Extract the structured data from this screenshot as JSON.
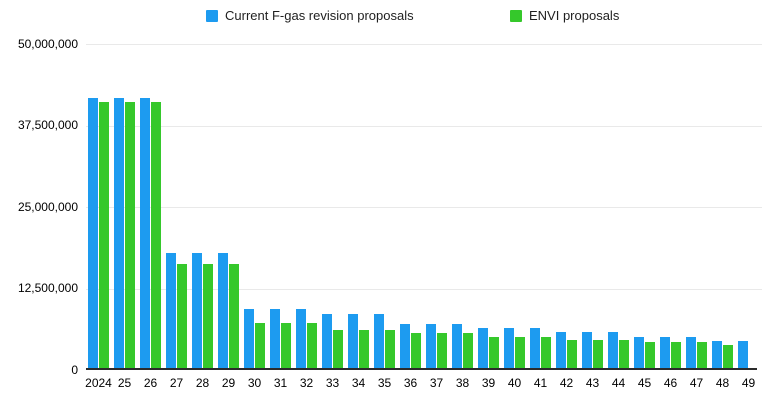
{
  "legend": {
    "items": [
      {
        "label": "Current F-gas revision proposals",
        "color": "#1d9bf0"
      },
      {
        "label": "ENVI proposals",
        "color": "#35c82b"
      }
    ]
  },
  "y_axis": {
    "tick_labels": [
      "50,000,000",
      "37,500,000",
      "25,000,000",
      "12,500,000",
      "0"
    ]
  },
  "chart_data": {
    "type": "bar",
    "title": "",
    "xlabel": "",
    "ylabel": "",
    "ylim": [
      0,
      50000000
    ],
    "grid": true,
    "legend_position": "top",
    "categories": [
      "2024",
      "25",
      "26",
      "27",
      "28",
      "29",
      "30",
      "31",
      "32",
      "33",
      "34",
      "35",
      "36",
      "37",
      "38",
      "39",
      "40",
      "41",
      "42",
      "43",
      "44",
      "45",
      "46",
      "47",
      "48",
      "49"
    ],
    "series": [
      {
        "name": "Current F-gas revision proposals",
        "color": "#1d9bf0",
        "values": [
          41700000,
          41700000,
          41700000,
          17700000,
          17700000,
          17700000,
          9100000,
          9100000,
          9100000,
          8400000,
          8400000,
          8400000,
          6800000,
          6800000,
          6800000,
          6100000,
          6100000,
          6100000,
          5500000,
          5500000,
          5500000,
          4800000,
          4800000,
          4800000,
          4200000,
          4200000
        ]
      },
      {
        "name": "ENVI proposals",
        "color": "#35c82b",
        "values": [
          41000000,
          41000000,
          41000000,
          16000000,
          16000000,
          16000000,
          6900000,
          6900000,
          6900000,
          5800000,
          5800000,
          5800000,
          5400000,
          5400000,
          5400000,
          4800000,
          4800000,
          4800000,
          4400000,
          4400000,
          4400000,
          4000000,
          4000000,
          4000000,
          3500000,
          null
        ]
      }
    ]
  }
}
